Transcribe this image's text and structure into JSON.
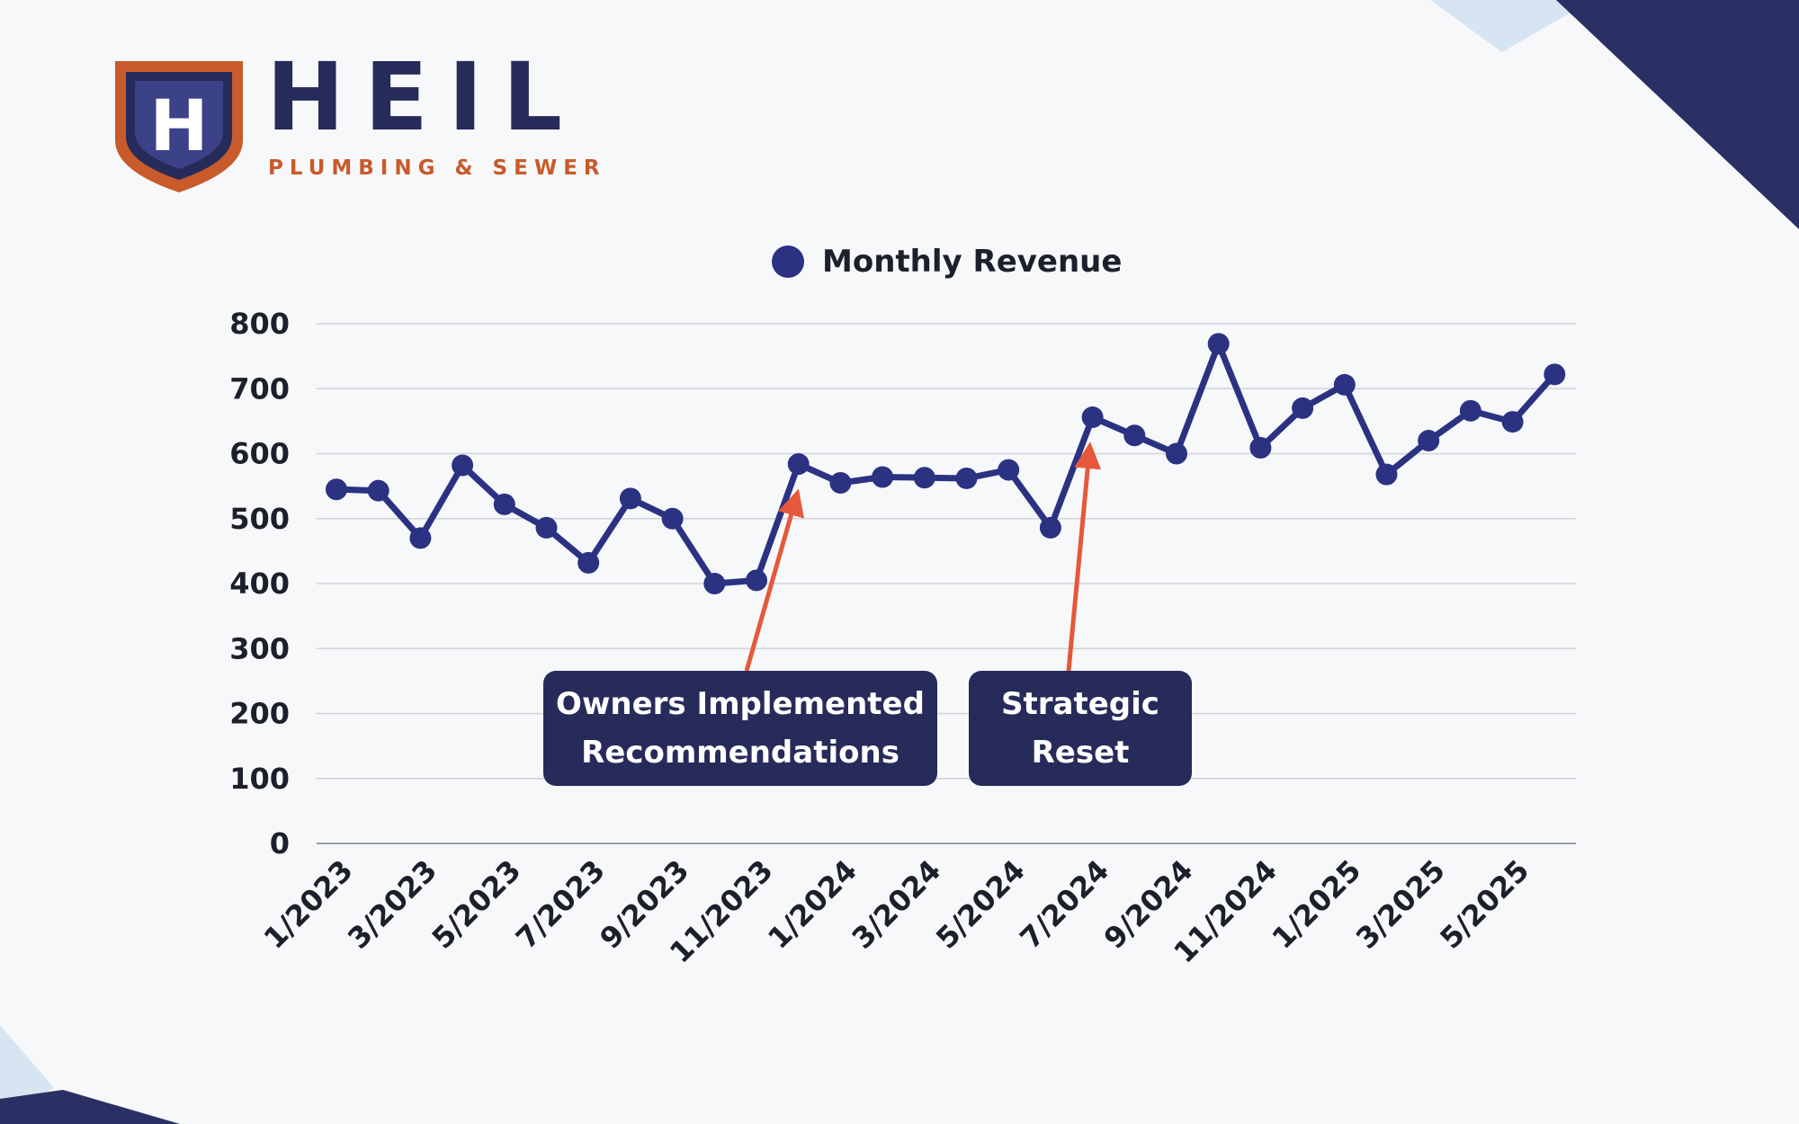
{
  "brand": {
    "name": "HEIL",
    "tagline": "PLUMBING & SEWER",
    "logo_monogram": "H",
    "colors": {
      "navy": "#262b5a",
      "orange": "#c85a2b"
    }
  },
  "colors": {
    "series": "#2b3282",
    "callout_bg": "#262b5a",
    "arrow": "#e5583a",
    "grid": "#cfd2d8"
  },
  "chart_data": {
    "type": "line",
    "title": "",
    "xlabel": "",
    "ylabel": "",
    "ylim": [
      0,
      800
    ],
    "yticks": [
      "0",
      "100",
      "200",
      "300",
      "400",
      "500",
      "600",
      "700",
      "800"
    ],
    "xtick_labels": [
      "1/2023",
      "3/2023",
      "5/2023",
      "7/2023",
      "9/2023",
      "11/2023",
      "1/2024",
      "3/2024",
      "5/2024",
      "7/2024",
      "9/2024",
      "11/2024",
      "1/2025",
      "3/2025",
      "5/2025"
    ],
    "grid": true,
    "legend_position": "top-center",
    "series": [
      {
        "name": "Monthly Revenue",
        "x": [
          "1/2023",
          "2/2023",
          "3/2023",
          "4/2023",
          "5/2023",
          "6/2023",
          "7/2023",
          "8/2023",
          "9/2023",
          "10/2023",
          "11/2023",
          "12/2023",
          "1/2024",
          "2/2024",
          "3/2024",
          "4/2024",
          "5/2024",
          "6/2024",
          "7/2024",
          "8/2024",
          "9/2024",
          "10/2024",
          "11/2024",
          "12/2024",
          "1/2025",
          "2/2025",
          "3/2025",
          "4/2025",
          "5/2025",
          "6/2025"
        ],
        "values": [
          545,
          543,
          470,
          582,
          522,
          486,
          432,
          531,
          500,
          400,
          405,
          584,
          555,
          564,
          563,
          562,
          575,
          486,
          656,
          628,
          600,
          769,
          609,
          670,
          706,
          568,
          620,
          666,
          649,
          722
        ]
      }
    ],
    "annotations": [
      {
        "text_lines": [
          "Owners Implemented",
          "Recommendations"
        ],
        "points_to": "12/2023"
      },
      {
        "text_lines": [
          "Strategic",
          "Reset"
        ],
        "points_to": "7/2024"
      }
    ]
  }
}
